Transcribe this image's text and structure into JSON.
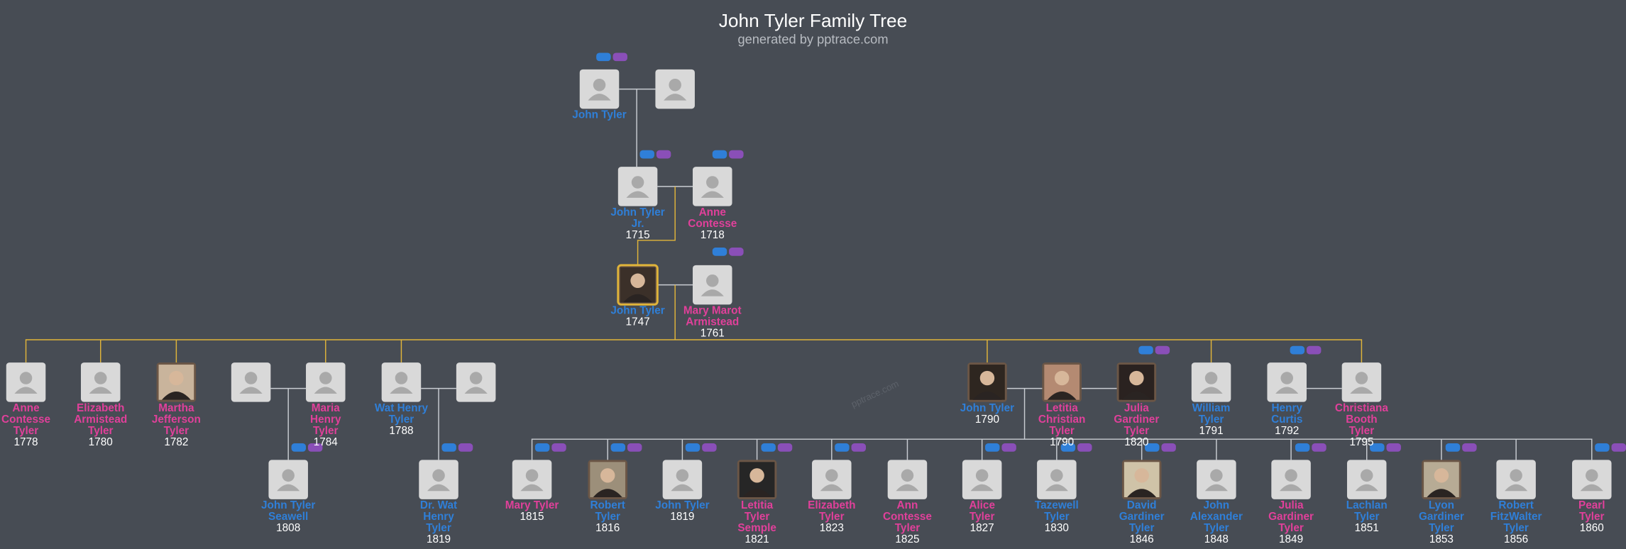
{
  "header": {
    "title": "John Tyler Family Tree",
    "subtitle": "generated by pptrace.com",
    "watermark": "pptrace.com"
  },
  "nodes": [
    {
      "name": "John Tyler",
      "color": "#2f7fd8"
    },
    {
      "name": "John Tyler Jr.",
      "year": "1715",
      "color": "#2f7fd8"
    },
    {
      "name": "Anne Contesse",
      "year": "1718",
      "color": "#e0409a"
    },
    {
      "name": "John Tyler",
      "year": "1747",
      "color": "#2f7fd8"
    },
    {
      "name": "Mary Marot Armistead",
      "year": "1761",
      "color": "#e0409a"
    },
    {
      "name": "Anne Contesse Tyler",
      "year": "1778",
      "color": "#e0409a"
    },
    {
      "name": "Elizabeth Armistead Tyler",
      "year": "1780",
      "color": "#e0409a"
    },
    {
      "name": "Martha Jefferson Tyler",
      "year": "1782",
      "color": "#e0409a"
    },
    {
      "name": "Maria Henry Tyler",
      "year": "1784",
      "color": "#e0409a"
    },
    {
      "name": "Wat Henry Tyler",
      "year": "1788",
      "color": "#2f7fd8"
    },
    {
      "name": "John Tyler",
      "year": "1790",
      "color": "#2f7fd8"
    },
    {
      "name": "Letitia Christian Tyler",
      "year": "1790",
      "color": "#e0409a"
    },
    {
      "name": "Julia Gardiner Tyler",
      "year": "1820",
      "color": "#e0409a"
    },
    {
      "name": "William Tyler",
      "year": "1791",
      "color": "#2f7fd8"
    },
    {
      "name": "Henry Curtis",
      "year": "1792",
      "color": "#2f7fd8"
    },
    {
      "name": "Christiana Booth Tyler",
      "year": "1795",
      "color": "#e0409a"
    },
    {
      "name": "John Tyler Seawell",
      "year": "1808",
      "color": "#2f7fd8"
    },
    {
      "name": "Dr. Wat Henry Tyler",
      "year": "1819",
      "color": "#2f7fd8"
    },
    {
      "name": "Mary Tyler",
      "year": "1815",
      "color": "#e0409a"
    },
    {
      "name": "Robert Tyler",
      "year": "1816",
      "color": "#2f7fd8"
    },
    {
      "name": "John Tyler",
      "year": "1819",
      "color": "#2f7fd8"
    },
    {
      "name": "Letitia Tyler Semple",
      "year": "1821",
      "color": "#e0409a"
    },
    {
      "name": "Elizabeth Tyler",
      "year": "1823",
      "color": "#e0409a"
    },
    {
      "name": "Ann Contesse Tyler",
      "year": "1825",
      "color": "#e0409a"
    },
    {
      "name": "Alice Tyler",
      "year": "1827",
      "color": "#e0409a"
    },
    {
      "name": "Tazewell Tyler",
      "year": "1830",
      "color": "#2f7fd8"
    },
    {
      "name": "David Gardiner Tyler",
      "year": "1846",
      "color": "#2f7fd8"
    },
    {
      "name": "John Alexander Tyler",
      "year": "1848",
      "color": "#2f7fd8"
    },
    {
      "name": "Julia Gardiner Tyler",
      "year": "1849",
      "color": "#e0409a"
    },
    {
      "name": "Lachlan Tyler",
      "year": "1851",
      "color": "#2f7fd8"
    },
    {
      "name": "Lyon Gardiner Tyler",
      "year": "1853",
      "color": "#2f7fd8"
    },
    {
      "name": "Robert FitzWalter Tyler",
      "year": "1856",
      "color": "#2f7fd8"
    },
    {
      "name": "Pearl Tyler",
      "year": "1860",
      "color": "#e0409a"
    }
  ]
}
